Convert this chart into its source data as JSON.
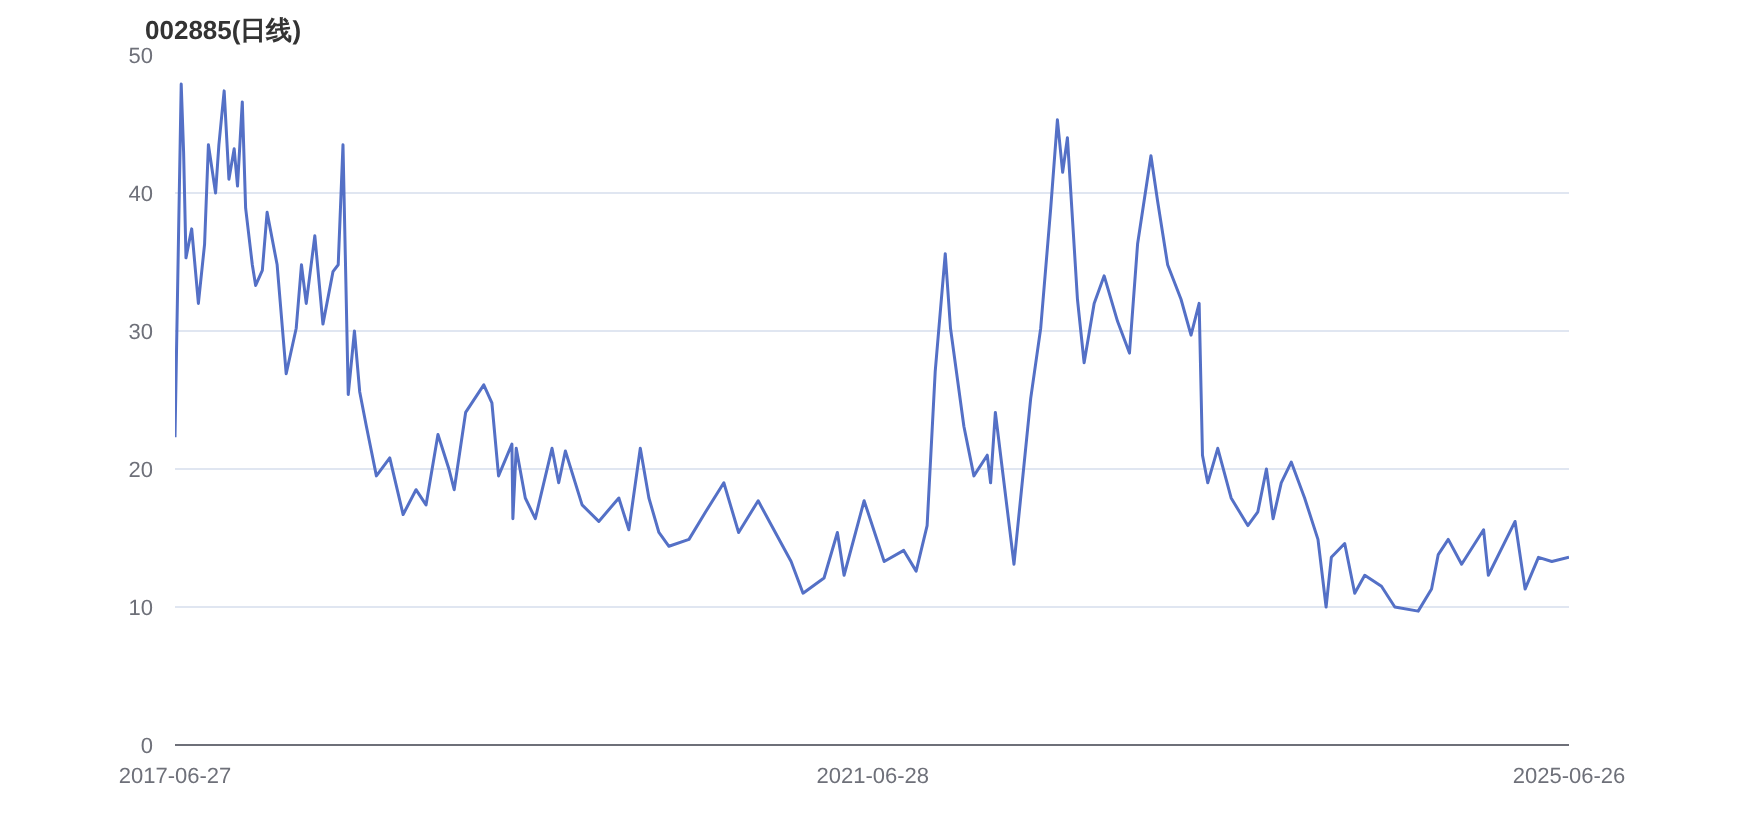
{
  "chart_data": {
    "type": "line",
    "title": "002885(日线)",
    "x": [
      "2017-06-27",
      "2017-07-10",
      "2017-07-15",
      "2017-07-20",
      "2017-08-01",
      "2017-08-15",
      "2017-08-28",
      "2017-09-05",
      "2017-09-20",
      "2017-09-27",
      "2017-10-08",
      "2017-10-18",
      "2017-10-29",
      "2017-11-05",
      "2017-11-15",
      "2017-11-22",
      "2017-12-06",
      "2017-12-13",
      "2017-12-27",
      "2018-01-06",
      "2018-01-27",
      "2018-02-15",
      "2018-03-08",
      "2018-03-19",
      "2018-03-29",
      "2018-04-16",
      "2018-05-03",
      "2018-05-24",
      "2018-06-04",
      "2018-06-14",
      "2018-06-25",
      "2018-07-08",
      "2018-07-19",
      "2018-08-02",
      "2018-08-23",
      "2018-09-20",
      "2018-10-18",
      "2018-11-14",
      "2018-12-05",
      "2018-12-30",
      "2019-01-22",
      "2019-02-02",
      "2019-02-26",
      "2019-04-05",
      "2019-04-22",
      "2019-05-06",
      "2019-06-03",
      "2019-06-05",
      "2019-06-12",
      "2019-07-01",
      "2019-07-22",
      "2019-08-26",
      "2019-09-09",
      "2019-09-23",
      "2019-10-28",
      "2019-12-02",
      "2020-01-13",
      "2020-02-03",
      "2020-02-27",
      "2020-03-16",
      "2020-04-06",
      "2020-04-27",
      "2020-06-08",
      "2020-07-13",
      "2020-08-20",
      "2020-09-20",
      "2020-10-31",
      "2020-11-28",
      "2021-01-08",
      "2021-02-02",
      "2021-03-18",
      "2021-04-15",
      "2021-04-29",
      "2021-06-10",
      "2021-07-22",
      "2021-09-01",
      "2021-09-27",
      "2021-10-20",
      "2021-11-06",
      "2021-11-27",
      "2021-12-08",
      "2022-01-05",
      "2022-01-26",
      "2022-02-23",
      "2022-03-02",
      "2022-03-12",
      "2022-03-23",
      "2022-04-20",
      "2022-05-25",
      "2022-06-15",
      "2022-07-06",
      "2022-07-20",
      "2022-07-31",
      "2022-08-10",
      "2022-08-31",
      "2022-09-14",
      "2022-10-05",
      "2022-10-26",
      "2022-11-23",
      "2022-12-18",
      "2023-01-04",
      "2023-02-01",
      "2023-02-15",
      "2023-03-08",
      "2023-04-05",
      "2023-04-26",
      "2023-05-13",
      "2023-05-20",
      "2023-05-31",
      "2023-06-21",
      "2023-07-19",
      "2023-08-23",
      "2023-09-13",
      "2023-10-01",
      "2023-10-15",
      "2023-11-01",
      "2023-11-22",
      "2023-12-20",
      "2024-01-17",
      "2024-02-03",
      "2024-02-14",
      "2024-03-13",
      "2024-04-03",
      "2024-04-24",
      "2024-05-29",
      "2024-06-26",
      "2024-08-14",
      "2024-09-11",
      "2024-09-25",
      "2024-10-16",
      "2024-11-13",
      "2024-12-29",
      "2025-01-08",
      "2025-03-05",
      "2025-03-26",
      "2025-04-23",
      "2025-05-21",
      "2025-06-26"
    ],
    "series": [
      {
        "color": "#5470c6",
        "values": [
          22.3,
          47.9,
          43,
          35.3,
          37.4,
          32,
          36.3,
          43.5,
          40,
          43.5,
          47.4,
          41,
          43.2,
          40.5,
          46.6,
          38.9,
          34.8,
          33.3,
          34.4,
          38.6,
          34.8,
          26.9,
          30.2,
          34.8,
          32,
          36.9,
          30.5,
          34.3,
          34.8,
          43.5,
          25.4,
          30,
          25.6,
          23.1,
          19.5,
          20.8,
          16.7,
          18.5,
          17.4,
          22.5,
          20,
          18.5,
          24.1,
          26.1,
          24.8,
          19.5,
          21.8,
          16.4,
          21.5,
          17.9,
          16.4,
          21.5,
          19,
          21.3,
          17.4,
          16.2,
          17.9,
          15.6,
          21.5,
          17.9,
          15.4,
          14.4,
          14.9,
          16.9,
          19,
          15.4,
          17.7,
          15.9,
          13.3,
          11,
          12.1,
          15.4,
          12.3,
          17.7,
          13.3,
          14.1,
          12.6,
          15.9,
          27.1,
          35.6,
          30.2,
          23.1,
          19.5,
          21,
          19,
          24.1,
          21,
          13.1,
          25.1,
          30.2,
          38.9,
          45.3,
          41.5,
          44,
          32.3,
          27.7,
          32,
          34,
          30.7,
          28.4,
          36.3,
          42.7,
          39.4,
          34.8,
          32.3,
          29.7,
          32,
          21,
          19,
          21.5,
          17.9,
          15.9,
          16.9,
          20,
          16.4,
          19,
          20.5,
          17.9,
          14.9,
          10,
          13.6,
          14.6,
          11,
          12.3,
          11.5,
          10,
          9.7,
          11.3,
          13.8,
          14.9,
          13.1,
          15.6,
          12.3,
          16.2,
          11.3,
          13.6,
          13.3,
          13.6
        ]
      }
    ],
    "xlim": [
      "2017-06-27",
      "2025-06-26"
    ],
    "xticks": [
      "2017-06-27",
      "2021-06-28",
      "2025-06-26"
    ],
    "ylim": [
      0,
      50
    ],
    "yticks": [
      0,
      10,
      20,
      30,
      40,
      50
    ],
    "grid": "y",
    "marker": "none",
    "line_style": "solid"
  }
}
